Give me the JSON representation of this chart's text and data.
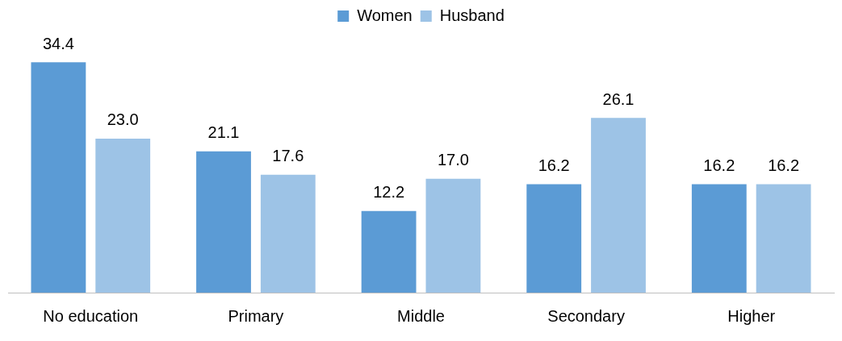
{
  "chart_data": {
    "type": "bar",
    "categories": [
      "No education",
      "Primary",
      "Middle",
      "Secondary",
      "Higher"
    ],
    "series": [
      {
        "name": "Women",
        "color": "#5b9bd5",
        "values": [
          34.4,
          21.1,
          12.2,
          16.2,
          16.2
        ],
        "value_labels": [
          "34.4",
          "21.1",
          "12.2",
          "16.2",
          "16.2"
        ]
      },
      {
        "name": "Husband",
        "color": "#9dc3e6",
        "values": [
          23.0,
          17.6,
          17.0,
          26.1,
          16.2
        ],
        "value_labels": [
          "23.0",
          "17.6",
          "17.0",
          "26.1",
          "16.2"
        ]
      }
    ],
    "legend": "top",
    "grid": false
  }
}
